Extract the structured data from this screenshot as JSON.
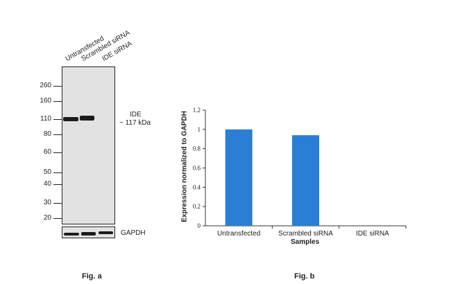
{
  "figure_a": {
    "lane_labels": [
      "Untransfected",
      "Scrambled siRNA",
      "IDE siRNA"
    ],
    "mw_markers": [
      "260",
      "160",
      "110",
      "80",
      "60",
      "50",
      "40",
      "30",
      "20"
    ],
    "target_label": "IDE",
    "target_size": "~ 117 kDa",
    "loading_control_label": "GAPDH",
    "caption": "Fig. a"
  },
  "figure_b": {
    "caption": "Fig. b"
  },
  "chart_data": {
    "type": "bar",
    "categories": [
      "Untransfected",
      "Scrambled siRNA",
      "IDE siRNA"
    ],
    "values": [
      1.0,
      0.94,
      0.0
    ],
    "xlabel": "Samples",
    "ylabel": "Expression normalized to GAPDH",
    "ylim": [
      0,
      1.2
    ],
    "yticks": [
      "0",
      "0.2",
      "0.4",
      "0.6",
      "0.8",
      "1",
      "1.2"
    ],
    "bar_color": "#2a7fd4",
    "grid": false
  }
}
